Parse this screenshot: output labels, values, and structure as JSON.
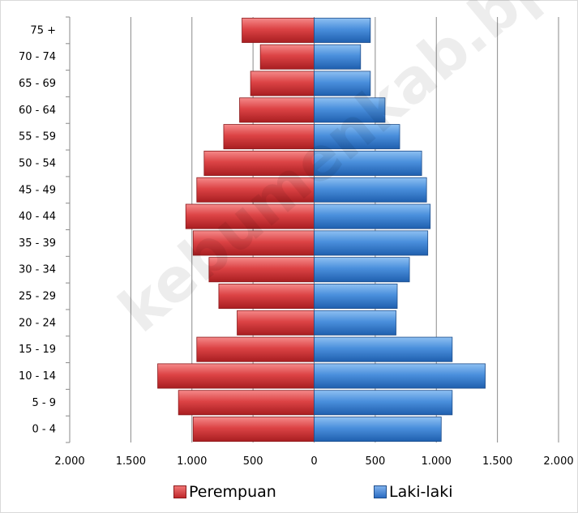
{
  "chart_data": {
    "type": "bar",
    "orientation": "horizontal",
    "categories": [
      "0 - 4",
      "5 - 9",
      "10 - 14",
      "15 - 19",
      "20 - 24",
      "25 - 29",
      "30 - 34",
      "35 - 39",
      "40 - 44",
      "45 - 49",
      "50 - 54",
      "55 - 59",
      "60 - 64",
      "65 - 69",
      "70 - 74",
      "75 +"
    ],
    "series": [
      {
        "name": "Perempuan",
        "color": "#d23a3c",
        "side": "left",
        "values": [
          990,
          1110,
          1280,
          960,
          630,
          780,
          860,
          990,
          1050,
          960,
          900,
          740,
          610,
          520,
          440,
          590
        ]
      },
      {
        "name": "Laki-laki",
        "color": "#3f86d6",
        "side": "right",
        "values": [
          1040,
          1130,
          1400,
          1130,
          670,
          680,
          780,
          930,
          950,
          920,
          880,
          700,
          580,
          460,
          380,
          460
        ]
      }
    ],
    "xlim": [
      -2000,
      2000
    ],
    "xticks": [
      -2000,
      -1500,
      -1000,
      -500,
      0,
      500,
      1000,
      1500,
      2000
    ],
    "xtick_labels": [
      "2.000",
      "1.500",
      "1.000",
      "500",
      "0",
      "500",
      "1.000",
      "1.500",
      "2.000"
    ],
    "grid": "vertical",
    "legend_position": "bottom"
  },
  "watermark": "kebumenkab.bps.go.id"
}
